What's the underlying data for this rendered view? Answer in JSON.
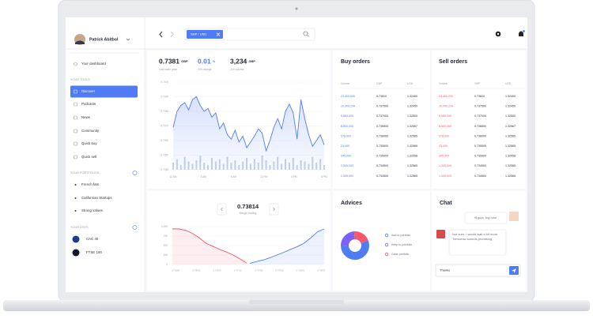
{
  "user": {
    "name": "Patrick Abitbol"
  },
  "sidebar": {
    "dashboard": "Your dashboard",
    "tools": {
      "title": "YOUR TOOLS",
      "items": [
        "Discover",
        "Podcasts",
        "News",
        "Community",
        "Quick buy",
        "Quick sell"
      ]
    },
    "portfolios": {
      "title": "YOUR PORTFOLIOS",
      "items": [
        "French fats",
        "Californian Startups",
        "Strong values"
      ]
    },
    "lists": {
      "title": "YOUR LISTS",
      "items": [
        "CAC 40",
        "FTSE 100"
      ]
    }
  },
  "search": {
    "tag": "GBP / USD"
  },
  "stats": [
    {
      "value": "0.7381",
      "unit": "GBP",
      "label": "Last trade price"
    },
    {
      "value": "0.01",
      "unit": "%",
      "label": "24h change"
    },
    {
      "value": "3,234",
      "unit": "GBP",
      "label": "24h volume"
    }
  ],
  "price_chart": {
    "type": "line",
    "color": "#4f7cf5",
    "ylim": [
      0.734,
      0.74
    ],
    "yticks": [
      {
        "value": 0.74,
        "label": "0.7400"
      },
      {
        "value": 0.739,
        "label": "0.7390"
      },
      {
        "value": 0.738,
        "label": "0.7380"
      },
      {
        "value": 0.737,
        "label": "0.7370"
      },
      {
        "value": 0.736,
        "label": "0.7360"
      },
      {
        "value": 0.735,
        "label": "0.7350"
      },
      {
        "value": 0.734,
        "label": "0.7340"
      }
    ],
    "xticks": [
      "12 AM",
      "4 AM",
      "8 AM",
      "12 PM",
      "4 PM",
      "8 PM"
    ],
    "values": [
      0.7369,
      0.738,
      0.7384,
      0.7386,
      0.7381,
      0.7388,
      0.739,
      0.7384,
      0.738,
      0.7382,
      0.7376,
      0.7379,
      0.7368,
      0.7372,
      0.7364,
      0.7361,
      0.7367,
      0.7359,
      0.7363,
      0.7355,
      0.7359,
      0.7363,
      0.7368,
      0.7365,
      0.7353,
      0.736,
      0.7369,
      0.7375,
      0.7368,
      0.738,
      0.7385,
      0.7379,
      0.7361,
      0.7388,
      0.7375,
      0.7364,
      0.7356,
      0.736,
      0.7364,
      0.7357
    ],
    "volume": {
      "color": "#c8d2e6",
      "ylim": [
        0,
        200
      ],
      "values": [
        30,
        45,
        20,
        55,
        35,
        25,
        40,
        60,
        30,
        20,
        50,
        35,
        45,
        25,
        55,
        30,
        40,
        20,
        35,
        50,
        25,
        45,
        30,
        60,
        40,
        20,
        35,
        55,
        25,
        45,
        30,
        50,
        20,
        40,
        35,
        25,
        55,
        30,
        45,
        20
      ]
    }
  },
  "depth_chart": {
    "type": "line",
    "price": "0.73814",
    "label": "Margin trading",
    "ylim": [
      0,
      1000
    ],
    "yticks": [
      0,
      250,
      500,
      750,
      {
        "value": 1000,
        "label": "1,000"
      }
    ],
    "xticks": [
      "0.73590",
      "0.73630",
      "0.73670",
      "0.73710",
      "0.73750",
      "0.73790",
      "0.73830",
      "0.73870"
    ],
    "series": [
      {
        "color": "#f5576c",
        "values": [
          940,
          940,
          900,
          820,
          700,
          560,
          480,
          400,
          330,
          250,
          150,
          40
        ]
      },
      {
        "color": "#4f7cf5",
        "values": [
          30,
          80,
          120,
          180,
          250,
          320,
          400,
          470,
          560,
          700,
          860,
          940
        ]
      }
    ]
  },
  "buy_orders": {
    "title": "Buy orders",
    "columns": [
      "Volume",
      "GBP",
      "USD"
    ],
    "rows": [
      [
        "23,400,000",
        "0.73810",
        "1.32400"
      ],
      [
        "10,000,234",
        "0.737500",
        "1.32450"
      ],
      [
        "9,689,000",
        "0.737000",
        "1.32500"
      ],
      [
        "8,800,000",
        "0.736500",
        "1.32567"
      ],
      [
        "578,000",
        "0.736000",
        "1.32565"
      ],
      [
        "23,000",
        "0.735500",
        "1.32565"
      ],
      [
        "345,000",
        "0.735000",
        "1.32558"
      ],
      [
        "1,345,000",
        "0.734500",
        "1.32565"
      ],
      [
        "1,345,000",
        "0.734500",
        "1.32565"
      ]
    ]
  },
  "sell_orders": {
    "title": "Sell orders",
    "columns": [
      "Volume",
      "GBP",
      "USD"
    ],
    "rows": [
      [
        "23,400,000",
        "0.73810",
        "1.32400"
      ],
      [
        "10,000,234",
        "0.737500",
        "1.32450"
      ],
      [
        "9,689,000",
        "0.737000",
        "1.32500"
      ],
      [
        "8,800,000",
        "0.736500",
        "1.32567"
      ],
      [
        "578,000",
        "0.736000",
        "1.32565"
      ],
      [
        "23,000",
        "0.735500",
        "1.32565"
      ],
      [
        "345,000",
        "0.735000",
        "1.32558"
      ],
      [
        "1,345,000",
        "0.734500",
        "1.32565"
      ],
      [
        "1,345,000",
        "0.734500",
        "1.32565"
      ]
    ]
  },
  "advices": {
    "title": "Advices",
    "type": "pie",
    "series": [
      {
        "name": "Add to portfolio",
        "color": "#4f7cf5",
        "value": 55
      },
      {
        "name": "Keep to portfolio",
        "color": "#7b61ff",
        "value": 25
      },
      {
        "name": "Clear portfolio",
        "color": "#f5576c",
        "value": 20
      }
    ]
  },
  "chat": {
    "title": "Chat",
    "messages": [
      "Hi guys, buy now!",
      "Not sure. I would wait a bit more. Tomorrow sounds promising"
    ],
    "input": "Thanks"
  }
}
